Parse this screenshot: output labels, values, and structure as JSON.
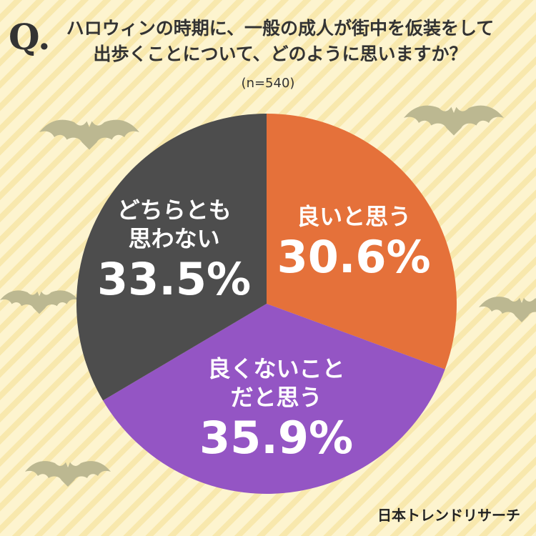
{
  "chart_data": {
    "type": "pie",
    "mark": "Q.",
    "title": "ハロウィンの時期に、一般の成人が街中を仮装をして\n出歩くことについて、どのように思いますか？",
    "subtitle": "(n=540)",
    "categories": [
      "良いと思う",
      "良くないこと\nだと思う",
      "どちらとも\n思わない"
    ],
    "values": [
      30.6,
      35.9,
      33.5
    ],
    "value_labels": [
      "30.6%",
      "35.9%",
      "33.5%"
    ],
    "colors": [
      "#e5713a",
      "#9455c4",
      "#4d4d4d"
    ],
    "source": "日本トレンドリサーチ"
  }
}
